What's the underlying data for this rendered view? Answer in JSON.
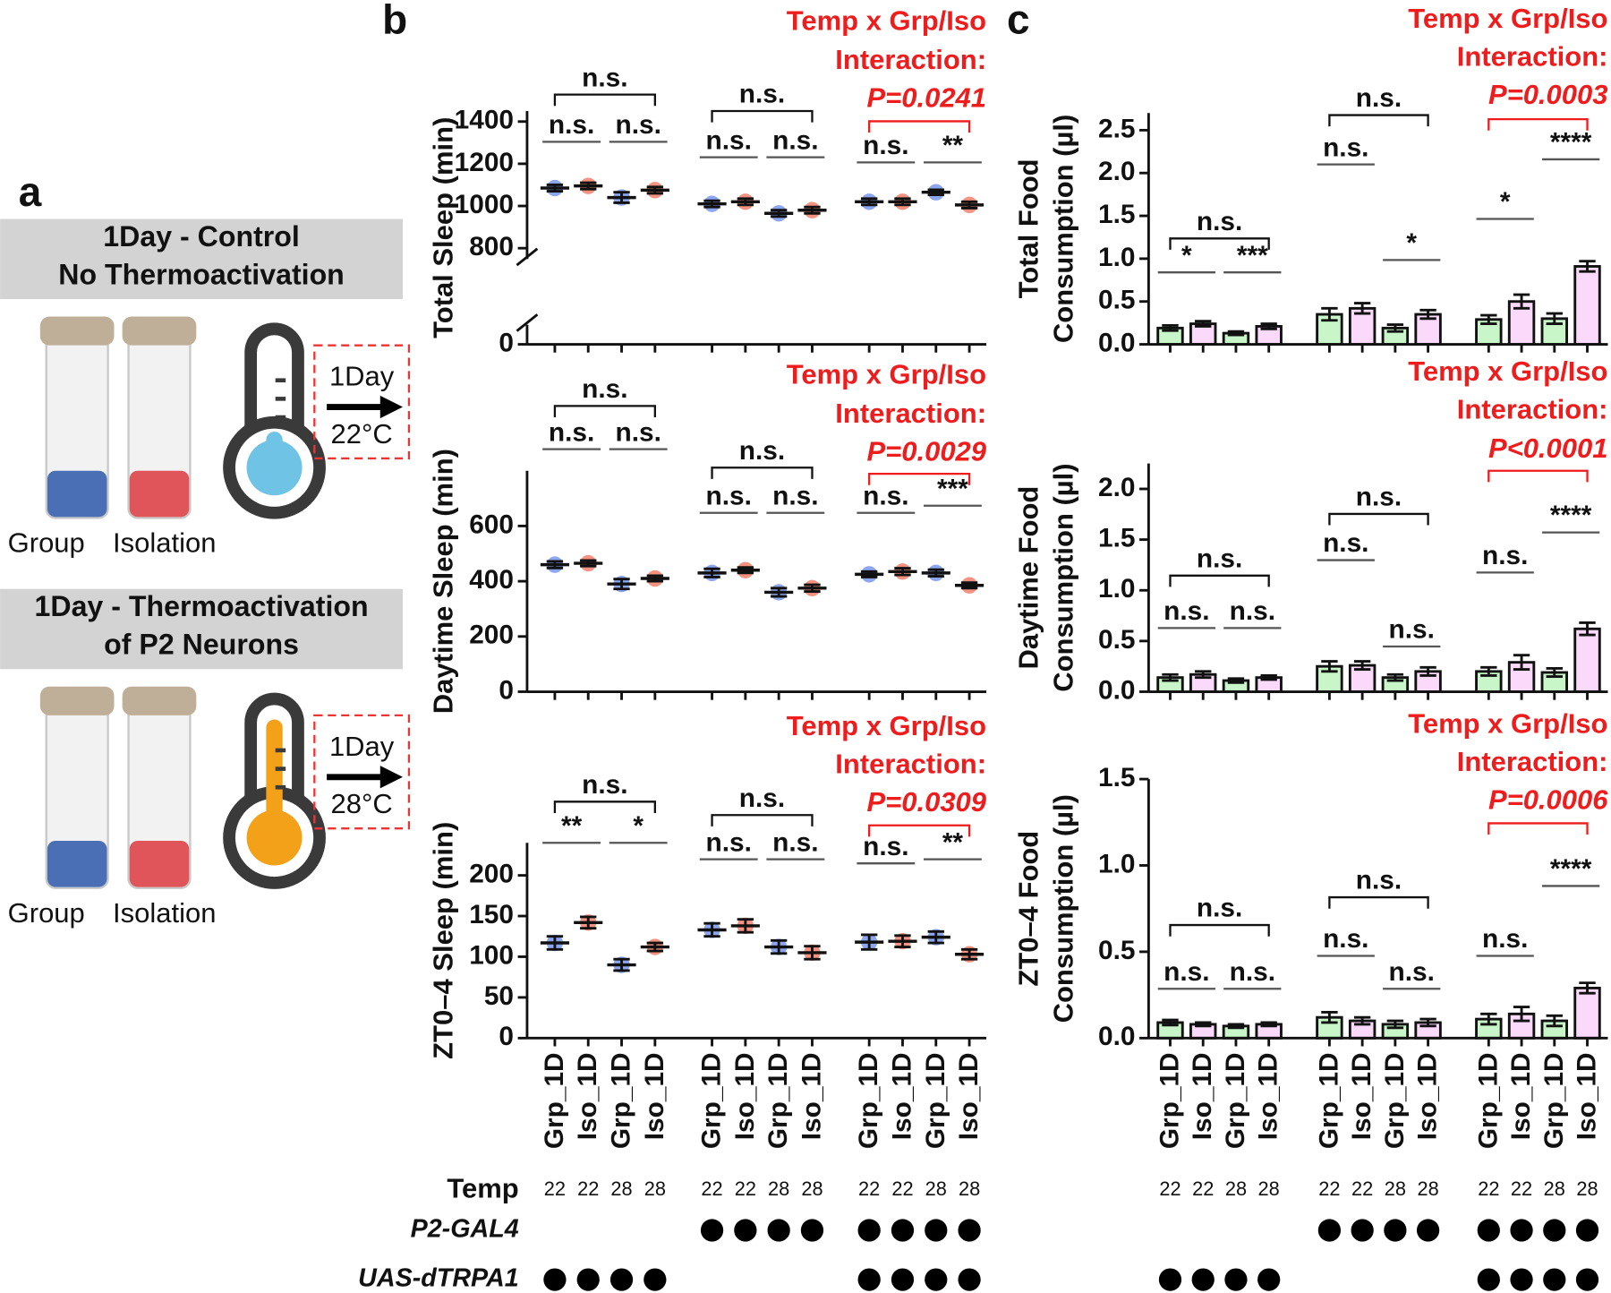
{
  "panel_labels": {
    "a": "a",
    "b": "b",
    "c": "c"
  },
  "panel_a": {
    "conditions": [
      {
        "title": [
          "1Day - Control",
          "No Thermoactivation"
        ],
        "duration": "1Day",
        "temperature": "22°C",
        "groups": [
          "Group",
          "Isolation"
        ],
        "thermometer_color": "#6fc3e5"
      },
      {
        "title": [
          "1Day - Thermoactivation",
          "of P2 Neurons"
        ],
        "duration": "1Day",
        "temperature": "28°C",
        "groups": [
          "Group",
          "Isolation"
        ],
        "thermometer_color": "#f4a11a"
      }
    ]
  },
  "chart_data": [
    {
      "type": "dot",
      "ylabel": [
        "Total Sleep (min)"
      ],
      "ylim": [
        0,
        1450
      ],
      "y_break": [
        100,
        700
      ],
      "yticks": [
        0,
        800,
        1000,
        1200,
        1400
      ],
      "values": [
        1085,
        1095,
        1040,
        1075,
        1010,
        1020,
        965,
        980,
        1020,
        1020,
        1065,
        1005
      ],
      "errors": [
        15,
        15,
        25,
        15,
        15,
        15,
        15,
        15,
        15,
        15,
        12,
        15
      ],
      "colors": [
        "#5b80e8",
        "#f2644c"
      ],
      "comparisons": [
        {
          "from": 0,
          "to": 3,
          "label": "n.s."
        },
        {
          "from": 0,
          "to": 1,
          "label": "n.s."
        },
        {
          "from": 2,
          "to": 3,
          "label": "n.s."
        },
        {
          "from": 4,
          "to": 7,
          "label": "n.s."
        },
        {
          "from": 4,
          "to": 5,
          "label": "n.s."
        },
        {
          "from": 6,
          "to": 7,
          "label": "n.s."
        },
        {
          "from": 8,
          "to": 9,
          "label": "n.s."
        },
        {
          "from": 10,
          "to": 11,
          "label": "**"
        }
      ],
      "interaction": {
        "lines": [
          "Temp x Grp/Iso",
          "Interaction:",
          "P=0.0241"
        ],
        "color": "#ee1c1c",
        "from": 8,
        "to": 11
      }
    },
    {
      "type": "dot",
      "ylabel": [
        "Daytime Sleep (min)"
      ],
      "ylim": [
        0,
        800
      ],
      "yticks": [
        0,
        200,
        400,
        600
      ],
      "values": [
        460,
        465,
        390,
        410,
        430,
        440,
        360,
        375,
        425,
        435,
        430,
        385
      ],
      "errors": [
        12,
        10,
        18,
        10,
        15,
        10,
        15,
        12,
        10,
        12,
        12,
        10
      ],
      "colors": [
        "#5b80e8",
        "#f2644c"
      ],
      "comparisons": [
        {
          "from": 0,
          "to": 3,
          "label": "n.s."
        },
        {
          "from": 0,
          "to": 1,
          "label": "n.s."
        },
        {
          "from": 2,
          "to": 3,
          "label": "n.s."
        },
        {
          "from": 4,
          "to": 7,
          "label": "n.s."
        },
        {
          "from": 4,
          "to": 5,
          "label": "n.s."
        },
        {
          "from": 6,
          "to": 7,
          "label": "n.s."
        },
        {
          "from": 8,
          "to": 9,
          "label": "n.s."
        },
        {
          "from": 10,
          "to": 11,
          "label": "***"
        }
      ],
      "interaction": {
        "lines": [
          "Temp x Grp/Iso",
          "Interaction:",
          "P=0.0029"
        ],
        "color": "#ee1c1c",
        "from": 8,
        "to": 11
      }
    },
    {
      "type": "dot",
      "ylabel": [
        "ZT0–4 Sleep (min)"
      ],
      "ylim": [
        0,
        240
      ],
      "yticks": [
        0,
        50,
        100,
        150,
        200
      ],
      "values": [
        117,
        142,
        90,
        112,
        133,
        138,
        112,
        105,
        118,
        119,
        124,
        103
      ],
      "errors": [
        8,
        7,
        7,
        5,
        8,
        8,
        8,
        8,
        9,
        7,
        7,
        6
      ],
      "colors": [
        "#5b80e8",
        "#f2644c"
      ],
      "categories": [
        "Grp_1D",
        "Iso_1D",
        "Grp_1D",
        "Iso_1D",
        "Grp_1D",
        "Iso_1D",
        "Grp_1D",
        "Iso_1D",
        "Grp_1D",
        "Iso_1D",
        "Grp_1D",
        "Iso_1D"
      ],
      "comparisons": [
        {
          "from": 0,
          "to": 3,
          "label": "n.s."
        },
        {
          "from": 0,
          "to": 1,
          "label": "**"
        },
        {
          "from": 2,
          "to": 3,
          "label": "*"
        },
        {
          "from": 4,
          "to": 7,
          "label": "n.s."
        },
        {
          "from": 4,
          "to": 5,
          "label": "n.s."
        },
        {
          "from": 6,
          "to": 7,
          "label": "n.s."
        },
        {
          "from": 8,
          "to": 9,
          "label": "n.s."
        },
        {
          "from": 10,
          "to": 11,
          "label": "**"
        }
      ],
      "interaction": {
        "lines": [
          "Temp x Grp/Iso",
          "Interaction:",
          "P=0.0309"
        ],
        "color": "#ee1c1c",
        "from": 8,
        "to": 11
      }
    },
    {
      "type": "bar",
      "ylabel": [
        "Total Food",
        "Consumption (µl)"
      ],
      "ylim": [
        0,
        2.7
      ],
      "yticks": [
        {
          "value": 0,
          "label": "0.0"
        },
        0.5,
        {
          "value": 1,
          "label": "1.0"
        },
        1.5,
        {
          "value": 2,
          "label": "2.0"
        },
        2.5
      ],
      "values": [
        0.19,
        0.24,
        0.13,
        0.21,
        0.35,
        0.42,
        0.19,
        0.35,
        0.29,
        0.5,
        0.3,
        0.91
      ],
      "errors": [
        0.03,
        0.03,
        0.02,
        0.03,
        0.07,
        0.06,
        0.04,
        0.05,
        0.05,
        0.08,
        0.06,
        0.06
      ],
      "colors": [
        "#22dd22",
        "#ee66ee"
      ],
      "comparisons": [
        {
          "from": 0,
          "to": 3,
          "label": "n.s."
        },
        {
          "from": 0,
          "to": 1,
          "label": "*"
        },
        {
          "from": 2,
          "to": 3,
          "label": "***"
        },
        {
          "from": 4,
          "to": 7,
          "label": "n.s."
        },
        {
          "from": 4,
          "to": 5,
          "label": "n.s."
        },
        {
          "from": 6,
          "to": 7,
          "label": "*"
        },
        {
          "from": 8,
          "to": 9,
          "label": "*"
        },
        {
          "from": 10,
          "to": 11,
          "label": "****"
        }
      ],
      "interaction": {
        "lines": [
          "Temp x Grp/Iso",
          "Interaction:",
          "P=0.0003"
        ],
        "color": "#ee1c1c",
        "from": 8,
        "to": 11
      }
    },
    {
      "type": "bar",
      "ylabel": [
        "Daytime Food",
        "Consumption (µl)"
      ],
      "ylim": [
        0,
        2.25
      ],
      "yticks": [
        {
          "value": 0,
          "label": "0.0"
        },
        0.5,
        {
          "value": 1,
          "label": "1.0"
        },
        1.5,
        {
          "value": 2,
          "label": "2.0"
        }
      ],
      "values": [
        0.14,
        0.17,
        0.11,
        0.14,
        0.25,
        0.26,
        0.14,
        0.2,
        0.2,
        0.29,
        0.19,
        0.62
      ],
      "errors": [
        0.03,
        0.03,
        0.02,
        0.02,
        0.05,
        0.04,
        0.03,
        0.04,
        0.04,
        0.07,
        0.04,
        0.06
      ],
      "colors": [
        "#22dd22",
        "#ee66ee"
      ],
      "comparisons": [
        {
          "from": 0,
          "to": 3,
          "label": "n.s."
        },
        {
          "from": 0,
          "to": 1,
          "label": "n.s."
        },
        {
          "from": 2,
          "to": 3,
          "label": "n.s."
        },
        {
          "from": 4,
          "to": 7,
          "label": "n.s."
        },
        {
          "from": 4,
          "to": 5,
          "label": "n.s."
        },
        {
          "from": 6,
          "to": 7,
          "label": "n.s."
        },
        {
          "from": 8,
          "to": 9,
          "label": "n.s."
        },
        {
          "from": 10,
          "to": 11,
          "label": "****"
        }
      ],
      "interaction": {
        "lines": [
          "Temp x Grp/Iso",
          "Interaction:",
          "P<0.0001"
        ],
        "color": "#ee1c1c",
        "from": 8,
        "to": 11
      }
    },
    {
      "type": "bar",
      "ylabel": [
        "ZT0–4 Food",
        "Consumption (µl)"
      ],
      "ylim": [
        0,
        1.5
      ],
      "yticks": [
        {
          "value": 0,
          "label": "0.0"
        },
        0.5,
        {
          "value": 1,
          "label": "1.0"
        },
        1.5
      ],
      "values": [
        0.09,
        0.08,
        0.07,
        0.08,
        0.12,
        0.1,
        0.08,
        0.09,
        0.11,
        0.14,
        0.1,
        0.29
      ],
      "errors": [
        0.015,
        0.01,
        0.01,
        0.01,
        0.03,
        0.02,
        0.02,
        0.02,
        0.03,
        0.04,
        0.03,
        0.03
      ],
      "colors": [
        "#22dd22",
        "#ee66ee"
      ],
      "categories": [
        "Grp_1D",
        "Iso_1D",
        "Grp_1D",
        "Iso_1D",
        "Grp_1D",
        "Iso_1D",
        "Grp_1D",
        "Iso_1D",
        "Grp_1D",
        "Iso_1D",
        "Grp_1D",
        "Iso_1D"
      ],
      "comparisons": [
        {
          "from": 0,
          "to": 3,
          "label": "n.s."
        },
        {
          "from": 0,
          "to": 1,
          "label": "n.s."
        },
        {
          "from": 2,
          "to": 3,
          "label": "n.s."
        },
        {
          "from": 4,
          "to": 7,
          "label": "n.s."
        },
        {
          "from": 4,
          "to": 5,
          "label": "n.s."
        },
        {
          "from": 6,
          "to": 7,
          "label": "n.s."
        },
        {
          "from": 8,
          "to": 9,
          "label": "n.s."
        },
        {
          "from": 10,
          "to": 11,
          "label": "****"
        }
      ],
      "interaction": {
        "lines": [
          "Temp x Grp/Iso",
          "Interaction:",
          "P=0.0006"
        ],
        "color": "#ee1c1c",
        "from": 8,
        "to": 11
      }
    }
  ],
  "genotype_table": {
    "temp_label": "Temp",
    "temps": [
      22,
      22,
      28,
      28,
      22,
      22,
      28,
      28,
      22,
      22,
      28,
      28
    ],
    "rows": [
      {
        "label": "P2-GAL4",
        "present": [
          false,
          false,
          false,
          false,
          true,
          true,
          true,
          true,
          true,
          true,
          true,
          true
        ]
      },
      {
        "label": "UAS-dTRPA1",
        "present": [
          true,
          true,
          true,
          true,
          false,
          false,
          false,
          false,
          true,
          true,
          true,
          true
        ]
      }
    ]
  }
}
